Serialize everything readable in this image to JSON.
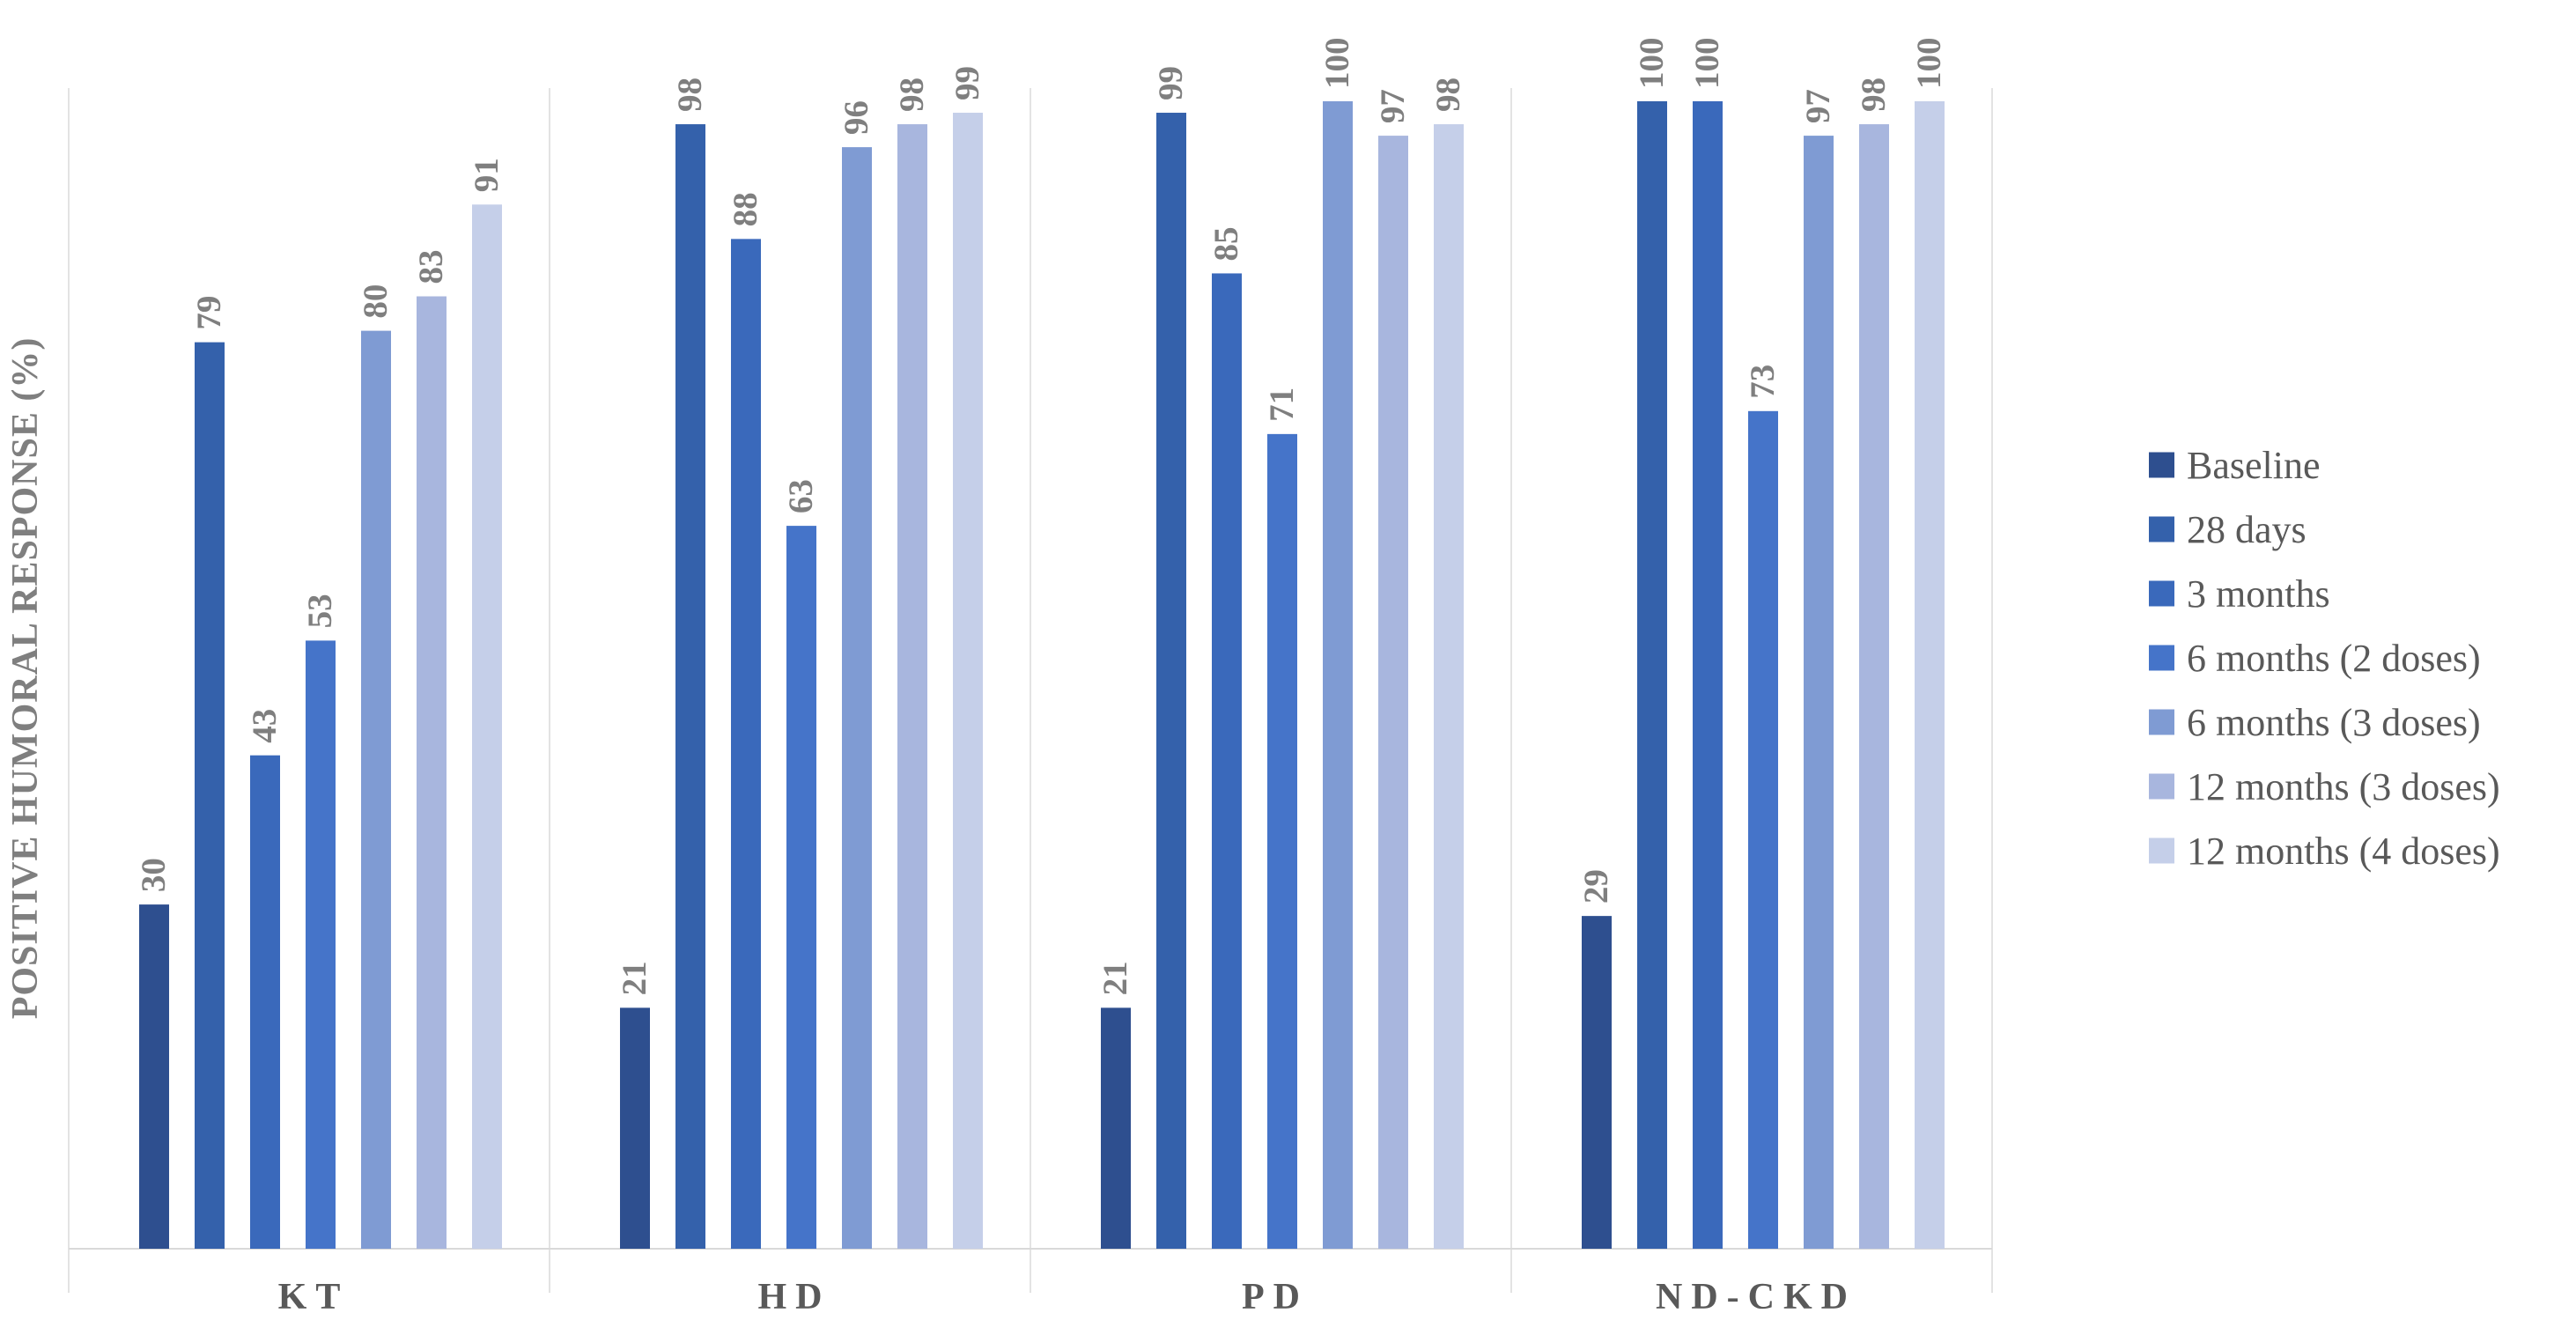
{
  "chart_data": {
    "type": "bar",
    "title": "",
    "xlabel": "",
    "ylabel": "POSITIVE HUMORAL RESPONSE (%)",
    "categories": [
      "KT",
      "HD",
      "PD",
      "ND-CKD"
    ],
    "ylim": [
      0,
      100
    ],
    "grid": false,
    "legend_position": "right",
    "series": [
      {
        "name": "Baseline",
        "color": "#2e4f8f",
        "values": [
          30,
          21,
          21,
          29
        ]
      },
      {
        "name": "28 days",
        "color": "#3461ab",
        "values": [
          79,
          98,
          99,
          100
        ]
      },
      {
        "name": "3 months",
        "color": "#3a69bb",
        "values": [
          43,
          88,
          85,
          100
        ]
      },
      {
        "name": "6 months (2 doses)",
        "color": "#4574c9",
        "values": [
          53,
          63,
          71,
          73
        ]
      },
      {
        "name": "6 months (3 doses)",
        "color": "#7f9bd3",
        "values": [
          80,
          96,
          100,
          97
        ]
      },
      {
        "name": "12 months (3 doses)",
        "color": "#a8b6de",
        "values": [
          83,
          98,
          97,
          98
        ]
      },
      {
        "name": "12 months (4 doses)",
        "color": "#c5cfe9",
        "values": [
          91,
          99,
          98,
          100
        ]
      }
    ]
  }
}
